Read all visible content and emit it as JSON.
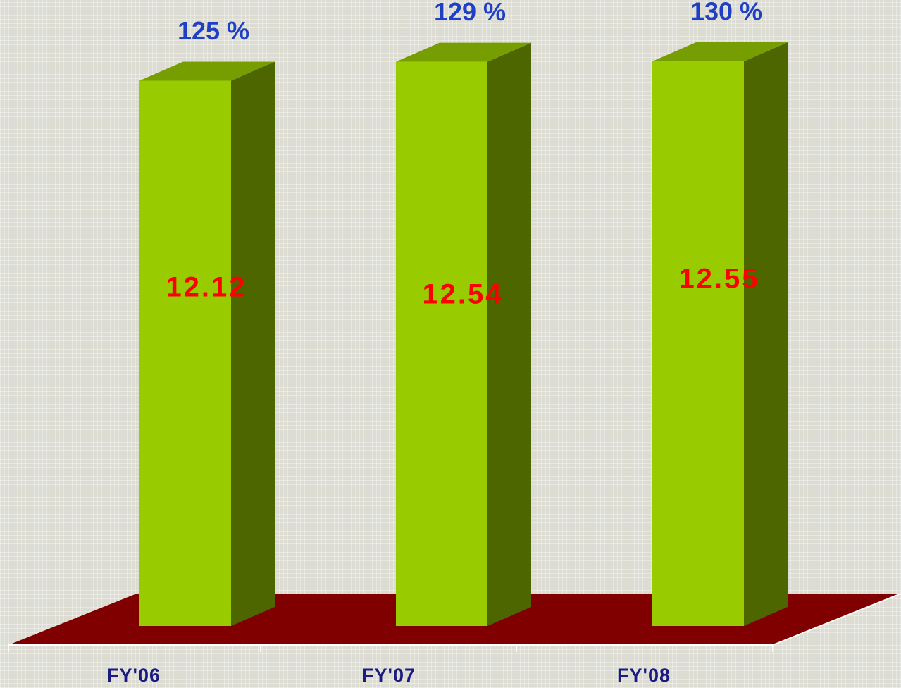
{
  "chart_data": {
    "type": "bar3d",
    "categories": [
      "FY'06",
      "FY'07",
      "FY'08"
    ],
    "values": [
      12.12,
      12.54,
      12.55
    ],
    "annotations": [
      "125 %",
      "129 %",
      "130 %"
    ],
    "color": "#99cc00",
    "floor_color": "#800000"
  }
}
